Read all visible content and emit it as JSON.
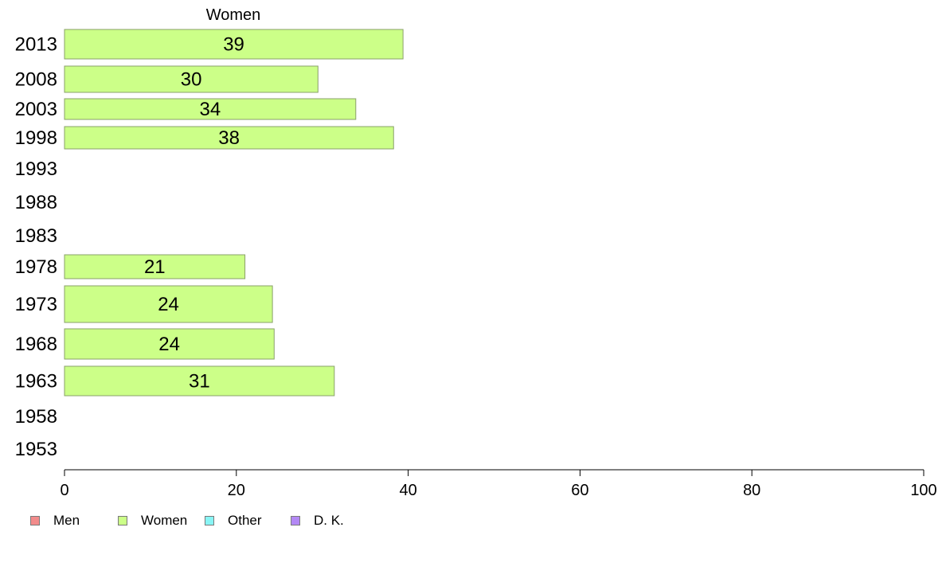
{
  "chart_data": {
    "type": "bar",
    "orientation": "horizontal",
    "title": "Women",
    "categories": [
      "2013",
      "2008",
      "2003",
      "1998",
      "1993",
      "1988",
      "1983",
      "1978",
      "1973",
      "1968",
      "1963",
      "1958",
      "1953"
    ],
    "series": [
      {
        "name": "Women",
        "color": "#ccff88",
        "values": [
          39.4,
          29.5,
          33.9,
          38.3,
          null,
          null,
          null,
          21.0,
          24.2,
          24.4,
          31.4,
          null,
          null
        ],
        "labels": [
          "39",
          "30",
          "34",
          "38",
          "",
          "",
          "",
          "21",
          "24",
          "24",
          "31",
          "",
          ""
        ]
      }
    ],
    "xlim": [
      0,
      100
    ],
    "xticks": [
      "0",
      "20",
      "40",
      "60",
      "80",
      "100"
    ],
    "grid": false,
    "legend_position": "bottom-left",
    "legend": [
      {
        "label": "Men",
        "color": "#f28b8b"
      },
      {
        "label": "Women",
        "color": "#ccff88"
      },
      {
        "label": "Other",
        "color": "#88f5f5"
      },
      {
        "label": "D. K.",
        "color": "#b388f5"
      }
    ]
  }
}
